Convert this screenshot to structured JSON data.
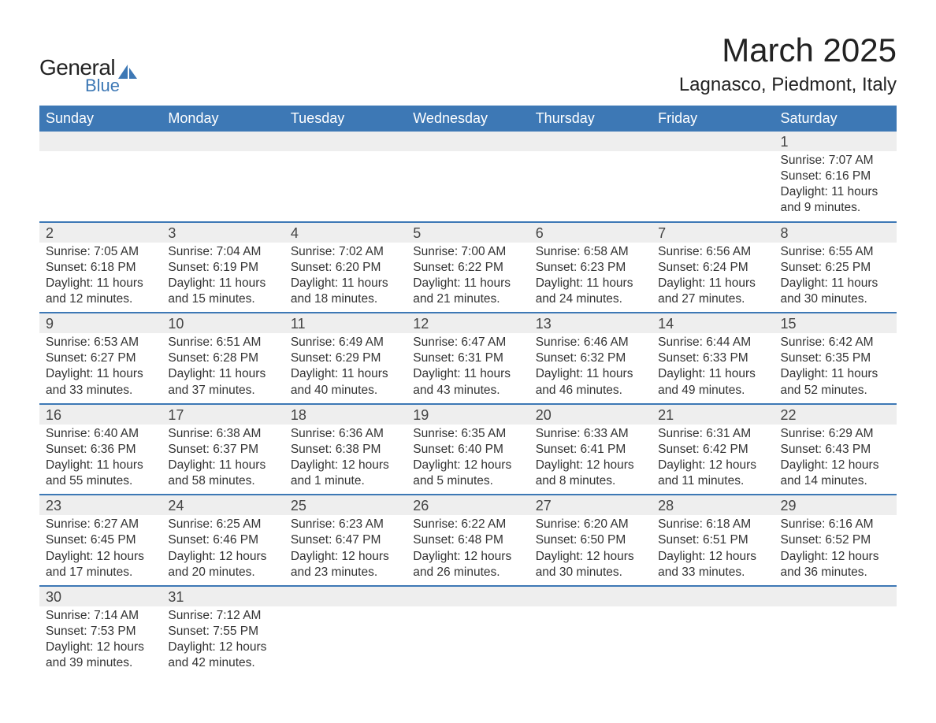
{
  "logo": {
    "text_general": "General",
    "text_blue": "Blue",
    "sail_color": "#3d78b5",
    "general_color": "#222222"
  },
  "header": {
    "month_title": "March 2025",
    "location": "Lagnasco, Piedmont, Italy"
  },
  "calendar": {
    "day_headers": [
      "Sunday",
      "Monday",
      "Tuesday",
      "Wednesday",
      "Thursday",
      "Friday",
      "Saturday"
    ],
    "header_bg": "#3d78b5",
    "header_fg": "#ffffff",
    "daynum_bg": "#eeeeee",
    "row_border": "#3d78b5",
    "text_color": "#333333",
    "weeks": [
      [
        null,
        null,
        null,
        null,
        null,
        null,
        {
          "n": "1",
          "sunrise": "Sunrise: 7:07 AM",
          "sunset": "Sunset: 6:16 PM",
          "daylight1": "Daylight: 11 hours",
          "daylight2": "and 9 minutes."
        }
      ],
      [
        {
          "n": "2",
          "sunrise": "Sunrise: 7:05 AM",
          "sunset": "Sunset: 6:18 PM",
          "daylight1": "Daylight: 11 hours",
          "daylight2": "and 12 minutes."
        },
        {
          "n": "3",
          "sunrise": "Sunrise: 7:04 AM",
          "sunset": "Sunset: 6:19 PM",
          "daylight1": "Daylight: 11 hours",
          "daylight2": "and 15 minutes."
        },
        {
          "n": "4",
          "sunrise": "Sunrise: 7:02 AM",
          "sunset": "Sunset: 6:20 PM",
          "daylight1": "Daylight: 11 hours",
          "daylight2": "and 18 minutes."
        },
        {
          "n": "5",
          "sunrise": "Sunrise: 7:00 AM",
          "sunset": "Sunset: 6:22 PM",
          "daylight1": "Daylight: 11 hours",
          "daylight2": "and 21 minutes."
        },
        {
          "n": "6",
          "sunrise": "Sunrise: 6:58 AM",
          "sunset": "Sunset: 6:23 PM",
          "daylight1": "Daylight: 11 hours",
          "daylight2": "and 24 minutes."
        },
        {
          "n": "7",
          "sunrise": "Sunrise: 6:56 AM",
          "sunset": "Sunset: 6:24 PM",
          "daylight1": "Daylight: 11 hours",
          "daylight2": "and 27 minutes."
        },
        {
          "n": "8",
          "sunrise": "Sunrise: 6:55 AM",
          "sunset": "Sunset: 6:25 PM",
          "daylight1": "Daylight: 11 hours",
          "daylight2": "and 30 minutes."
        }
      ],
      [
        {
          "n": "9",
          "sunrise": "Sunrise: 6:53 AM",
          "sunset": "Sunset: 6:27 PM",
          "daylight1": "Daylight: 11 hours",
          "daylight2": "and 33 minutes."
        },
        {
          "n": "10",
          "sunrise": "Sunrise: 6:51 AM",
          "sunset": "Sunset: 6:28 PM",
          "daylight1": "Daylight: 11 hours",
          "daylight2": "and 37 minutes."
        },
        {
          "n": "11",
          "sunrise": "Sunrise: 6:49 AM",
          "sunset": "Sunset: 6:29 PM",
          "daylight1": "Daylight: 11 hours",
          "daylight2": "and 40 minutes."
        },
        {
          "n": "12",
          "sunrise": "Sunrise: 6:47 AM",
          "sunset": "Sunset: 6:31 PM",
          "daylight1": "Daylight: 11 hours",
          "daylight2": "and 43 minutes."
        },
        {
          "n": "13",
          "sunrise": "Sunrise: 6:46 AM",
          "sunset": "Sunset: 6:32 PM",
          "daylight1": "Daylight: 11 hours",
          "daylight2": "and 46 minutes."
        },
        {
          "n": "14",
          "sunrise": "Sunrise: 6:44 AM",
          "sunset": "Sunset: 6:33 PM",
          "daylight1": "Daylight: 11 hours",
          "daylight2": "and 49 minutes."
        },
        {
          "n": "15",
          "sunrise": "Sunrise: 6:42 AM",
          "sunset": "Sunset: 6:35 PM",
          "daylight1": "Daylight: 11 hours",
          "daylight2": "and 52 minutes."
        }
      ],
      [
        {
          "n": "16",
          "sunrise": "Sunrise: 6:40 AM",
          "sunset": "Sunset: 6:36 PM",
          "daylight1": "Daylight: 11 hours",
          "daylight2": "and 55 minutes."
        },
        {
          "n": "17",
          "sunrise": "Sunrise: 6:38 AM",
          "sunset": "Sunset: 6:37 PM",
          "daylight1": "Daylight: 11 hours",
          "daylight2": "and 58 minutes."
        },
        {
          "n": "18",
          "sunrise": "Sunrise: 6:36 AM",
          "sunset": "Sunset: 6:38 PM",
          "daylight1": "Daylight: 12 hours",
          "daylight2": "and 1 minute."
        },
        {
          "n": "19",
          "sunrise": "Sunrise: 6:35 AM",
          "sunset": "Sunset: 6:40 PM",
          "daylight1": "Daylight: 12 hours",
          "daylight2": "and 5 minutes."
        },
        {
          "n": "20",
          "sunrise": "Sunrise: 6:33 AM",
          "sunset": "Sunset: 6:41 PM",
          "daylight1": "Daylight: 12 hours",
          "daylight2": "and 8 minutes."
        },
        {
          "n": "21",
          "sunrise": "Sunrise: 6:31 AM",
          "sunset": "Sunset: 6:42 PM",
          "daylight1": "Daylight: 12 hours",
          "daylight2": "and 11 minutes."
        },
        {
          "n": "22",
          "sunrise": "Sunrise: 6:29 AM",
          "sunset": "Sunset: 6:43 PM",
          "daylight1": "Daylight: 12 hours",
          "daylight2": "and 14 minutes."
        }
      ],
      [
        {
          "n": "23",
          "sunrise": "Sunrise: 6:27 AM",
          "sunset": "Sunset: 6:45 PM",
          "daylight1": "Daylight: 12 hours",
          "daylight2": "and 17 minutes."
        },
        {
          "n": "24",
          "sunrise": "Sunrise: 6:25 AM",
          "sunset": "Sunset: 6:46 PM",
          "daylight1": "Daylight: 12 hours",
          "daylight2": "and 20 minutes."
        },
        {
          "n": "25",
          "sunrise": "Sunrise: 6:23 AM",
          "sunset": "Sunset: 6:47 PM",
          "daylight1": "Daylight: 12 hours",
          "daylight2": "and 23 minutes."
        },
        {
          "n": "26",
          "sunrise": "Sunrise: 6:22 AM",
          "sunset": "Sunset: 6:48 PM",
          "daylight1": "Daylight: 12 hours",
          "daylight2": "and 26 minutes."
        },
        {
          "n": "27",
          "sunrise": "Sunrise: 6:20 AM",
          "sunset": "Sunset: 6:50 PM",
          "daylight1": "Daylight: 12 hours",
          "daylight2": "and 30 minutes."
        },
        {
          "n": "28",
          "sunrise": "Sunrise: 6:18 AM",
          "sunset": "Sunset: 6:51 PM",
          "daylight1": "Daylight: 12 hours",
          "daylight2": "and 33 minutes."
        },
        {
          "n": "29",
          "sunrise": "Sunrise: 6:16 AM",
          "sunset": "Sunset: 6:52 PM",
          "daylight1": "Daylight: 12 hours",
          "daylight2": "and 36 minutes."
        }
      ],
      [
        {
          "n": "30",
          "sunrise": "Sunrise: 7:14 AM",
          "sunset": "Sunset: 7:53 PM",
          "daylight1": "Daylight: 12 hours",
          "daylight2": "and 39 minutes."
        },
        {
          "n": "31",
          "sunrise": "Sunrise: 7:12 AM",
          "sunset": "Sunset: 7:55 PM",
          "daylight1": "Daylight: 12 hours",
          "daylight2": "and 42 minutes."
        },
        null,
        null,
        null,
        null,
        null
      ]
    ]
  }
}
